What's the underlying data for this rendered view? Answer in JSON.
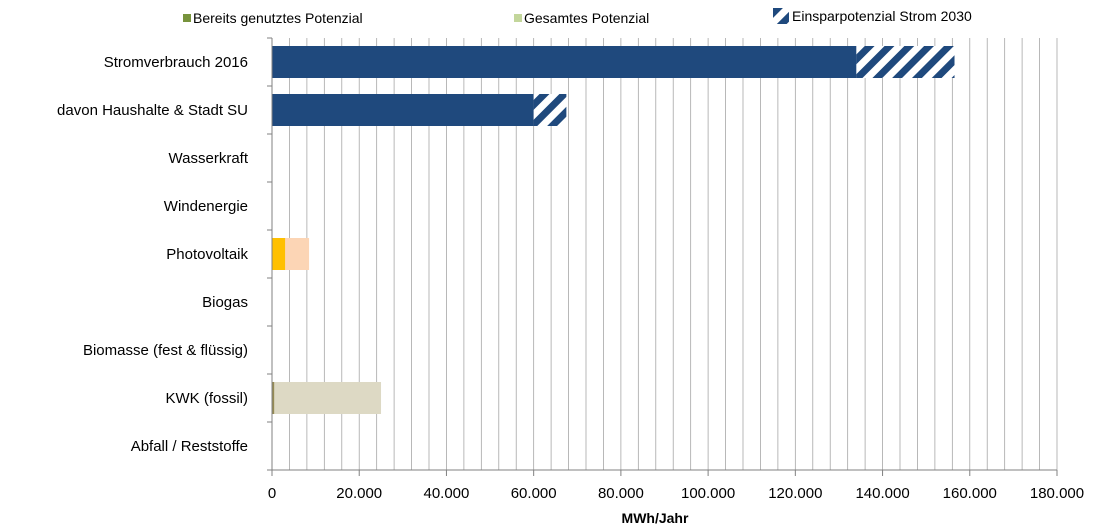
{
  "legend": {
    "used": "Bereits genutztes Potenzial",
    "total": "Gesamtes Potenzial",
    "savings": "Einsparpotenzial Strom 2030"
  },
  "colors": {
    "consumption": "#1f497d",
    "hatch_light": "#ffffff",
    "grid": "#a6a6a6",
    "legend_used": "#77933c",
    "legend_total": "#c3d69b",
    "pv_used": "#ffc000",
    "pv_total": "#fcd5b5",
    "kwk_used": "#948a54",
    "kwk_total": "#ddd9c4"
  },
  "chart_data": {
    "type": "bar",
    "orientation": "horizontal",
    "xlabel": "MWh/Jahr",
    "xlim": [
      0,
      180000
    ],
    "xticks": [
      0,
      20000,
      40000,
      60000,
      80000,
      100000,
      120000,
      140000,
      160000,
      180000
    ],
    "xtick_labels": [
      "0",
      "20.000",
      "40.000",
      "60.000",
      "80.000",
      "100.000",
      "120.000",
      "140.000",
      "160.000",
      "180.000"
    ],
    "grid": "vertical",
    "legend_position": "top",
    "categories": [
      "Stromverbrauch 2016",
      "davon Haushalte & Stadt SU",
      "Wasserkraft",
      "Windenergie",
      "Photovoltaik",
      "Biogas",
      "Biomasse (fest & flüssig)",
      "KWK (fossil)",
      "Abfall / Reststoffe"
    ],
    "series": [
      {
        "name": "Bereits genutztes Potenzial",
        "values": [
          134000,
          60000,
          0,
          0,
          3000,
          0,
          0,
          500,
          0
        ]
      },
      {
        "name": "Gesamtes Potenzial",
        "values": [
          0,
          0,
          0,
          0,
          8500,
          0,
          0,
          25000,
          0
        ]
      },
      {
        "name": "Einsparpotenzial Strom 2030",
        "values": [
          22500,
          7500,
          0,
          0,
          0,
          0,
          0,
          0,
          0
        ]
      }
    ]
  }
}
